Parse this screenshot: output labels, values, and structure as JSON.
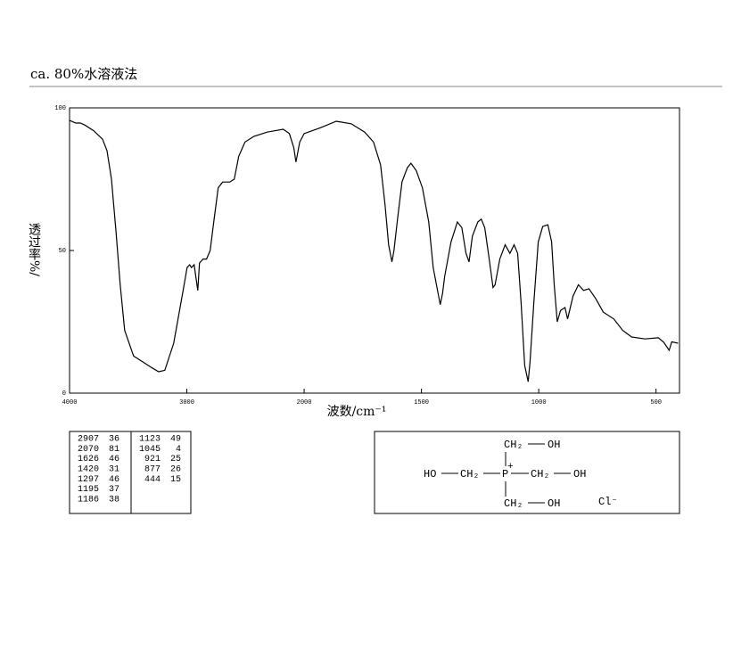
{
  "chart_data": {
    "type": "line",
    "title": "ca. 80%水溶液法",
    "x_label": "波数/cm⁻¹",
    "y_label": "透过率%/",
    "xlim": [
      4000,
      400
    ],
    "xticks": [
      4000,
      3000,
      2000,
      1500,
      1000,
      500
    ],
    "ylim": [
      0,
      100
    ],
    "yticks": [
      0,
      50,
      100
    ],
    "series": [
      {
        "color": "#000000",
        "x": [
          4000,
          3947,
          3909,
          3871,
          3795,
          3719,
          3681,
          3643,
          3605,
          3568,
          3530,
          3454,
          3378,
          3302,
          3241,
          3188,
          3112,
          3036,
          2998,
          2976,
          2961,
          2938,
          2907,
          2892,
          2862,
          2832,
          2801,
          2771,
          2733,
          2695,
          2634,
          2596,
          2558,
          2505,
          2429,
          2315,
          2179,
          2126,
          2088,
          2070,
          2038,
          2000,
          1932,
          1863,
          1799,
          1742,
          1704,
          1674,
          1655,
          1640,
          1626,
          1617,
          1602,
          1583,
          1560,
          1545,
          1522,
          1496,
          1469,
          1450,
          1420,
          1410,
          1401,
          1374,
          1347,
          1328,
          1310,
          1297,
          1283,
          1260,
          1245,
          1230,
          1211,
          1195,
          1186,
          1166,
          1143,
          1123,
          1105,
          1090,
          1075,
          1060,
          1045,
          1037,
          1021,
          1002,
          983,
          961,
          945,
          934,
          921,
          907,
          888,
          877,
          854,
          831,
          809,
          786,
          756,
          725,
          680,
          642,
          604,
          547,
          490,
          467,
          444,
          433,
          406
        ],
        "values": [
          95.6,
          94.7,
          94.7,
          94,
          92,
          89,
          85,
          75,
          57,
          38,
          22,
          13,
          11,
          9,
          7.5,
          8,
          17.5,
          35,
          44,
          45,
          44,
          45,
          36,
          45.6,
          47,
          47,
          50,
          60,
          72,
          74,
          74,
          75,
          83,
          88,
          90,
          91.5,
          92.5,
          91,
          86,
          81,
          88,
          91,
          93,
          95.3,
          94.4,
          91.5,
          88,
          80,
          66,
          52,
          46,
          50,
          61,
          74,
          79,
          80.6,
          78,
          72,
          60,
          44,
          31,
          35,
          41,
          53,
          60,
          58,
          49,
          46,
          55,
          60,
          61,
          58,
          47,
          37,
          38,
          47,
          52,
          49,
          52,
          49,
          31.5,
          9.7,
          4,
          11,
          31.5,
          53,
          58.4,
          59,
          53,
          38,
          25,
          29,
          30,
          26,
          34,
          38,
          36,
          36.6,
          33,
          28.4,
          26,
          22,
          19.7,
          19,
          19.4,
          17.8,
          15,
          18,
          17.5
        ]
      }
    ]
  },
  "peak_table": [
    [
      2907,
      36
    ],
    [
      2070,
      81
    ],
    [
      1626,
      46
    ],
    [
      1420,
      31
    ],
    [
      1297,
      46
    ],
    [
      1195,
      37
    ],
    [
      1186,
      38
    ],
    [
      1123,
      49
    ],
    [
      1045,
      4
    ],
    [
      921,
      25
    ],
    [
      877,
      26
    ],
    [
      444,
      15
    ]
  ],
  "structure": {
    "top_ch2": "CH₂",
    "top_oh": "OH",
    "left_ho": "HO",
    "left_ch2": "CH₂",
    "p": "P",
    "charge": "+",
    "right_ch2": "CH₂",
    "right_oh": "OH",
    "bottom_ch2": "CH₂",
    "bottom_oh": "OH",
    "anion": "Cl⁻"
  }
}
